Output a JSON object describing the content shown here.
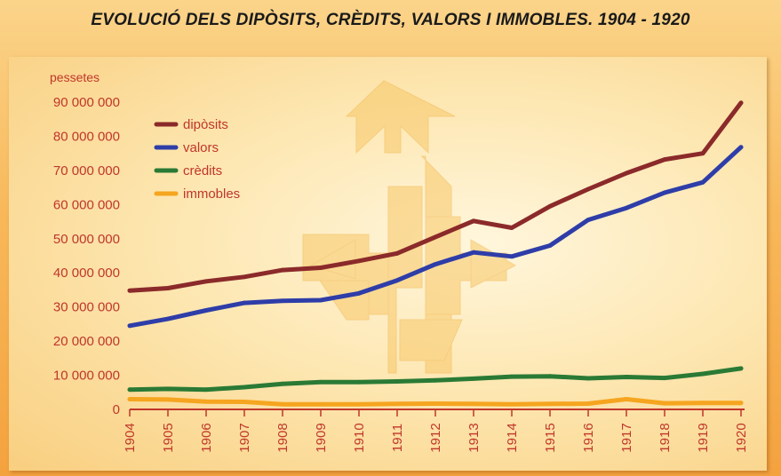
{
  "title": "EVOLUCIÓ DELS  DIPÒSITS, CRÈDITS, VALORS I IMMOBLES. 1904 - 1920",
  "chart_data": {
    "type": "line",
    "title": "EVOLUCIÓ DELS  DIPÒSITS, CRÈDITS, VALORS I IMMOBLES. 1904 - 1920",
    "ylabel": "pessetes",
    "xlabel": "",
    "ylim": [
      0,
      90000000
    ],
    "yticks": [
      "0",
      "10 000 000",
      "20 000 000",
      "30 000 000",
      "40 000 000",
      "50 000 000",
      "60 000 000",
      "70 000 000",
      "80 000 000",
      "90 000 000"
    ],
    "categories": [
      "1904",
      "1905",
      "1906",
      "1907",
      "1908",
      "1909",
      "1910",
      "1911",
      "1912",
      "1913",
      "1914",
      "1915",
      "1916",
      "1917",
      "1918",
      "1919",
      "1920"
    ],
    "legend_position": "top-left",
    "grid": false,
    "series": [
      {
        "name": "dipòsits",
        "color": "#8b2a2a",
        "values": [
          34800000,
          35500000,
          37500000,
          38800000,
          40800000,
          41500000,
          43500000,
          45700000,
          50500000,
          55200000,
          53200000,
          59500000,
          64500000,
          69200000,
          73200000,
          75000000,
          89800000
        ]
      },
      {
        "name": "valors",
        "color": "#2e3da8",
        "values": [
          24500000,
          26500000,
          29000000,
          31200000,
          31800000,
          32000000,
          34000000,
          37800000,
          42500000,
          46000000,
          44800000,
          48000000,
          55500000,
          59000000,
          63500000,
          66500000,
          76800000
        ]
      },
      {
        "name": "crèdits",
        "color": "#2a7a35",
        "values": [
          5800000,
          6000000,
          5800000,
          6500000,
          7500000,
          8000000,
          8000000,
          8200000,
          8500000,
          9000000,
          9600000,
          9700000,
          9100000,
          9500000,
          9200000,
          10400000,
          12000000
        ]
      },
      {
        "name": "immobles",
        "color": "#f5a51f",
        "values": [
          3000000,
          2900000,
          2300000,
          2200000,
          1500000,
          1500000,
          1500000,
          1600000,
          1700000,
          1600000,
          1500000,
          1600000,
          1700000,
          3000000,
          1800000,
          1900000,
          1900000
        ]
      }
    ]
  }
}
